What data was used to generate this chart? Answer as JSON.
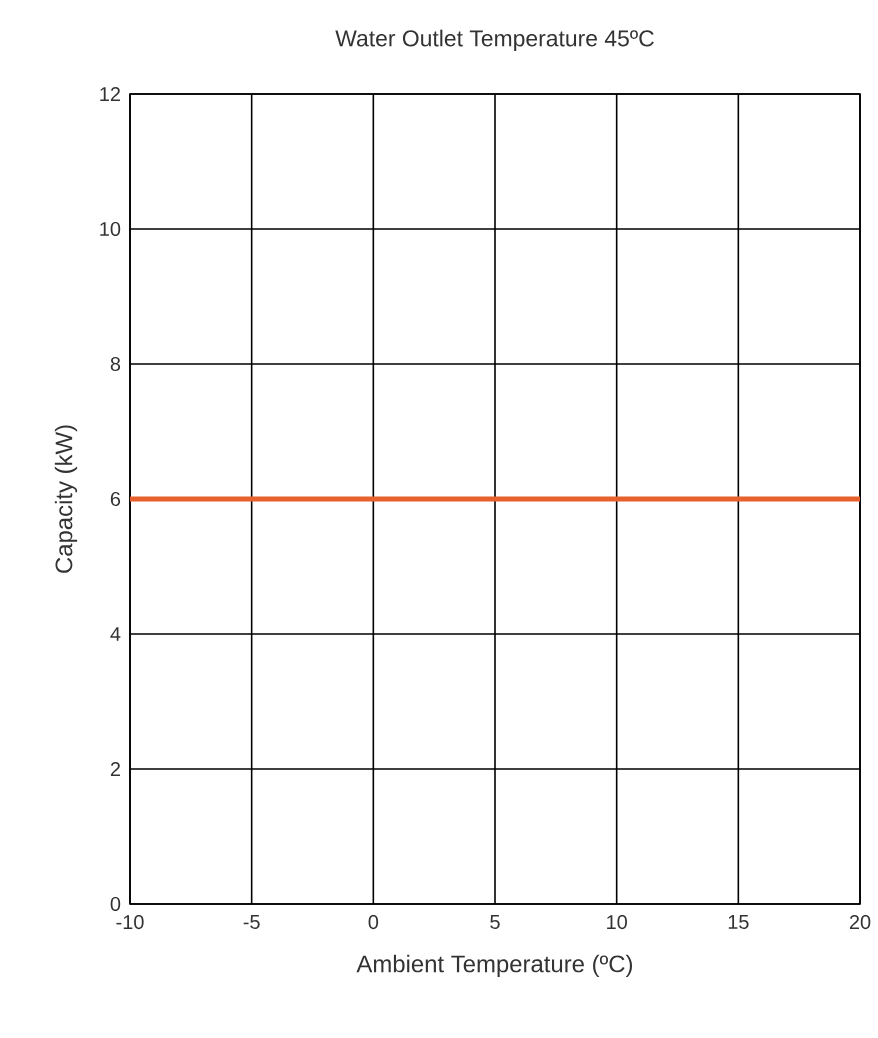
{
  "chart_data": {
    "type": "line",
    "title": "Water Outlet Temperature 45ºC",
    "xlabel": "Ambient Temperature (ºC)",
    "ylabel": "Capacity (kW)",
    "x": [
      -10,
      20
    ],
    "series": [
      {
        "color": "#e8612c",
        "values": [
          6,
          6
        ]
      }
    ],
    "xlim": [
      -10,
      20
    ],
    "ylim": [
      0,
      12
    ],
    "xticks": [
      -10,
      -5,
      0,
      5,
      10,
      15,
      20
    ],
    "yticks": [
      0,
      2,
      4,
      6,
      8,
      10,
      12
    ],
    "grid": true,
    "line_style": "solid",
    "marker": "none"
  }
}
